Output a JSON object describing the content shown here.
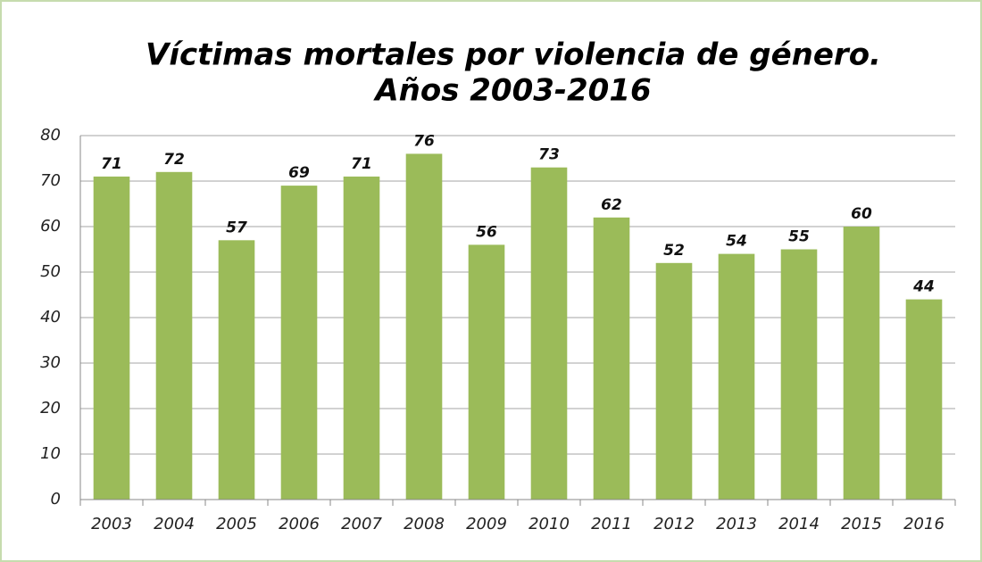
{
  "chart_data": {
    "type": "bar",
    "title": "Víctimas mortales por violencia de género.",
    "subtitle": "Años 2003-2016",
    "categories": [
      "2003",
      "2004",
      "2005",
      "2006",
      "2007",
      "2008",
      "2009",
      "2010",
      "2011",
      "2012",
      "2013",
      "2014",
      "2015",
      "2016"
    ],
    "values": [
      71,
      72,
      57,
      69,
      71,
      76,
      56,
      73,
      62,
      52,
      54,
      55,
      60,
      44
    ],
    "color": "#9bbb59",
    "ylim": [
      0,
      80
    ],
    "yticks": [
      0,
      10,
      20,
      30,
      40,
      50,
      60,
      70,
      80
    ],
    "grid": true
  }
}
